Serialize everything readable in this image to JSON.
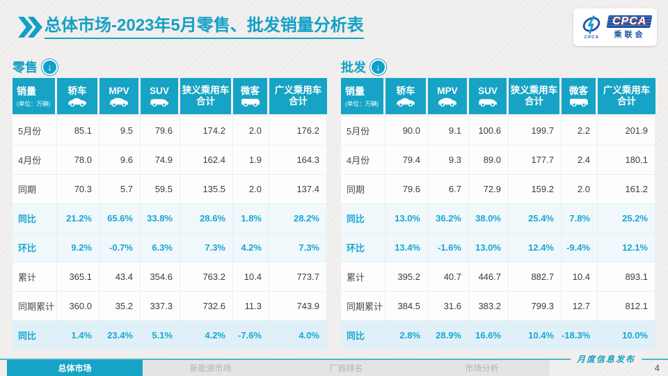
{
  "page": {
    "title": {
      "highlight": "总体市场",
      "rest": "-2023年5月零售、批发销量分析表"
    }
  },
  "logo": {
    "cpca": "CPCA",
    "emblem_caption": "CPCA",
    "chinese": "乘联会"
  },
  "table_columns": {
    "sales_label": "销量",
    "sales_unit": "(单位：万辆)",
    "cols": [
      {
        "label": "轿车",
        "icon": "sedan-icon"
      },
      {
        "label": "MPV",
        "icon": "mpv-icon"
      },
      {
        "label": "SUV",
        "icon": "suv-icon"
      },
      {
        "label": "狭义乘用车\n合计",
        "icon": ""
      },
      {
        "label": "微客",
        "icon": "microvan-icon"
      },
      {
        "label": "广义乘用车\n合计",
        "icon": ""
      }
    ]
  },
  "tables": [
    {
      "section": "零售",
      "rows": [
        {
          "label": "5月份",
          "style": "normal",
          "values": [
            "85.1",
            "9.5",
            "79.6",
            "174.2",
            "2.0",
            "176.2"
          ]
        },
        {
          "label": "4月份",
          "style": "normal",
          "values": [
            "78.0",
            "9.6",
            "74.9",
            "162.4",
            "1.9",
            "164.3"
          ]
        },
        {
          "label": "同期",
          "style": "normal",
          "values": [
            "70.3",
            "5.7",
            "59.5",
            "135.5",
            "2.0",
            "137.4"
          ]
        },
        {
          "label": "同比",
          "style": "pct",
          "values": [
            "21.2%",
            "65.6%",
            "33.8%",
            "28.6%",
            "1.8%",
            "28.2%"
          ]
        },
        {
          "label": "环比",
          "style": "pct",
          "values": [
            "9.2%",
            "-0.7%",
            "6.3%",
            "7.3%",
            "4.2%",
            "7.3%"
          ]
        },
        {
          "label": "累计",
          "style": "normal",
          "values": [
            "365.1",
            "43.4",
            "354.6",
            "763.2",
            "10.4",
            "773.7"
          ]
        },
        {
          "label": "同期累计",
          "style": "normal",
          "values": [
            "360.0",
            "35.2",
            "337.3",
            "732.6",
            "11.3",
            "743.9"
          ]
        },
        {
          "label": "同比",
          "style": "pct-highlight",
          "values": [
            "1.4%",
            "23.4%",
            "5.1%",
            "4.2%",
            "-7.6%",
            "4.0%"
          ]
        }
      ]
    },
    {
      "section": "批发",
      "rows": [
        {
          "label": "5月份",
          "style": "normal",
          "values": [
            "90.0",
            "9.1",
            "100.6",
            "199.7",
            "2.2",
            "201.9"
          ]
        },
        {
          "label": "4月份",
          "style": "normal",
          "values": [
            "79.4",
            "9.3",
            "89.0",
            "177.7",
            "2.4",
            "180.1"
          ]
        },
        {
          "label": "同期",
          "style": "normal",
          "values": [
            "79.6",
            "6.7",
            "72.9",
            "159.2",
            "2.0",
            "161.2"
          ]
        },
        {
          "label": "同比",
          "style": "pct",
          "values": [
            "13.0%",
            "36.2%",
            "38.0%",
            "25.4%",
            "7.8%",
            "25.2%"
          ]
        },
        {
          "label": "环比",
          "style": "pct",
          "values": [
            "13.4%",
            "-1.6%",
            "13.0%",
            "12.4%",
            "-9.4%",
            "12.1%"
          ]
        },
        {
          "label": "累计",
          "style": "normal",
          "values": [
            "395.2",
            "40.7",
            "446.7",
            "882.7",
            "10.4",
            "893.1"
          ]
        },
        {
          "label": "同期累计",
          "style": "normal",
          "values": [
            "384.5",
            "31.6",
            "383.2",
            "799.3",
            "12.7",
            "812.1"
          ]
        },
        {
          "label": "同比",
          "style": "pct-highlight",
          "values": [
            "2.8%",
            "28.9%",
            "16.6%",
            "10.4%",
            "-18.3%",
            "10.0%"
          ]
        }
      ]
    }
  ],
  "footer": {
    "tabs": [
      {
        "label": "总体市场",
        "active": true
      },
      {
        "label": "新能源市场",
        "active": false
      },
      {
        "label": "厂商排名",
        "active": false
      },
      {
        "label": "市场分析",
        "active": false
      }
    ],
    "note": "月度信息发布",
    "page_number": "4"
  },
  "colors": {
    "accent_teal": "#16a3c5",
    "percent_text": "#17a7d2",
    "highlight_row_bg": "#e0f0f8",
    "logo_navy": "#1a4fa0",
    "footer_rule": "#49b6d4"
  }
}
